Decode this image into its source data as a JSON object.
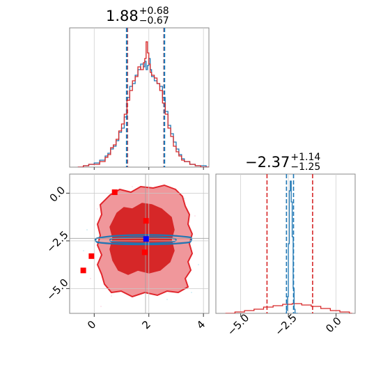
{
  "chart_data": [
    {
      "type": "histogram",
      "panel": "top-left",
      "title": {
        "value": "1.88",
        "upper": "+0.68",
        "lower": "−0.67"
      },
      "xlim": [
        -0.9,
        4.2
      ],
      "ylim": [
        0,
        1.0
      ],
      "grid": true,
      "lines": [
        {
          "color": "#d62728",
          "style": "dashed",
          "x": [
            1.21,
            2.56
          ]
        },
        {
          "color": "#1f77b4",
          "style": "dashed",
          "x": [
            1.19,
            2.57
          ]
        }
      ],
      "series": [
        {
          "color": "#1f77b4",
          "x": [
            -0.6,
            -0.4,
            -0.2,
            0.0,
            0.2,
            0.4,
            0.5,
            0.6,
            0.7,
            0.8,
            0.9,
            1.0,
            1.1,
            1.2,
            1.3,
            1.4,
            1.5,
            1.6,
            1.7,
            1.8,
            1.85,
            1.9,
            1.95,
            2.0,
            2.05,
            2.1,
            2.2,
            2.3,
            2.4,
            2.5,
            2.6,
            2.7,
            2.8,
            2.9,
            3.0,
            3.1,
            3.2,
            3.3,
            3.5,
            3.7,
            3.9,
            4.1
          ],
          "values": [
            0.0,
            0.01,
            0.02,
            0.03,
            0.05,
            0.08,
            0.1,
            0.13,
            0.15,
            0.19,
            0.25,
            0.28,
            0.36,
            0.5,
            0.58,
            0.6,
            0.66,
            0.7,
            0.74,
            0.72,
            0.76,
            0.7,
            0.73,
            0.78,
            0.7,
            0.65,
            0.62,
            0.6,
            0.58,
            0.5,
            0.4,
            0.3,
            0.24,
            0.18,
            0.13,
            0.09,
            0.06,
            0.04,
            0.02,
            0.01,
            0.01,
            0.0
          ]
        },
        {
          "color": "#d62728",
          "x": [
            -0.6,
            -0.4,
            -0.2,
            0.0,
            0.2,
            0.4,
            0.5,
            0.6,
            0.7,
            0.8,
            0.9,
            1.0,
            1.1,
            1.2,
            1.3,
            1.4,
            1.5,
            1.6,
            1.7,
            1.8,
            1.85,
            1.9,
            1.95,
            2.0,
            2.05,
            2.1,
            2.2,
            2.3,
            2.4,
            2.5,
            2.6,
            2.7,
            2.8,
            2.9,
            3.0,
            3.1,
            3.2,
            3.3,
            3.5,
            3.7,
            3.9,
            4.1
          ],
          "values": [
            0.0,
            0.01,
            0.02,
            0.02,
            0.04,
            0.07,
            0.09,
            0.14,
            0.16,
            0.2,
            0.26,
            0.31,
            0.38,
            0.48,
            0.55,
            0.62,
            0.65,
            0.72,
            0.7,
            0.75,
            0.78,
            0.9,
            0.82,
            0.74,
            0.68,
            0.66,
            0.64,
            0.6,
            0.55,
            0.46,
            0.38,
            0.28,
            0.22,
            0.15,
            0.11,
            0.08,
            0.05,
            0.04,
            0.02,
            0.01,
            0.0,
            0.0
          ]
        }
      ]
    },
    {
      "type": "contour",
      "panel": "bottom-left",
      "xlim": [
        -0.9,
        4.2
      ],
      "ylim": [
        -6.3,
        1.0
      ],
      "xticks": [
        "0",
        "2",
        "4"
      ],
      "yticks": [
        "0.0",
        "−2.5",
        "−5.0"
      ],
      "grid": true,
      "contour_levels": [
        {
          "name": "outer",
          "fill": "#f0979b",
          "stroke": "#e1262c"
        },
        {
          "name": "inner",
          "fill": "#d62728",
          "stroke": "#d62728"
        },
        {
          "name": "narrow",
          "fill": "none",
          "stroke": "#1f77b4"
        }
      ],
      "markers": [
        {
          "x": 0.75,
          "y": 0.05,
          "color": "#ff0000"
        },
        {
          "x": 1.9,
          "y": -1.45,
          "color": "#ff0000"
        },
        {
          "x": 1.85,
          "y": -3.1,
          "color": "#ff0000"
        },
        {
          "x": -0.1,
          "y": -3.3,
          "color": "#ff0000"
        },
        {
          "x": -0.4,
          "y": -4.05,
          "color": "#ff0000"
        },
        {
          "x": 1.9,
          "y": -2.4,
          "color": "#0000ff"
        }
      ],
      "crosshair": {
        "x": 1.88,
        "y": -2.37
      }
    },
    {
      "type": "histogram",
      "panel": "bottom-right",
      "title": {
        "value": "−2.37",
        "upper": "+1.14",
        "lower": "−1.25"
      },
      "xlim": [
        -6.3,
        1.0
      ],
      "ylim": [
        0,
        1.0
      ],
      "xticks": [
        "−5.0",
        "−2.5",
        "0.0"
      ],
      "grid": true,
      "lines": [
        {
          "color": "#d62728",
          "style": "dashed",
          "x": [
            -3.62,
            -1.23
          ]
        },
        {
          "color": "#1f77b4",
          "style": "dashed",
          "x": [
            -2.6,
            -2.23
          ]
        }
      ],
      "series": [
        {
          "color": "#d62728",
          "x": [
            -5.8,
            -5.3,
            -4.8,
            -4.3,
            -3.8,
            -3.3,
            -2.8,
            -2.3,
            -1.8,
            -1.3,
            -0.8,
            -0.3,
            0.2,
            0.7
          ],
          "values": [
            0.0,
            0.01,
            0.02,
            0.03,
            0.045,
            0.055,
            0.065,
            0.07,
            0.06,
            0.05,
            0.035,
            0.02,
            0.01,
            0.0
          ]
        },
        {
          "color": "#1f77b4",
          "x": [
            -2.65,
            -2.6,
            -2.55,
            -2.5,
            -2.45,
            -2.4,
            -2.35,
            -2.3,
            -2.25,
            -2.2,
            -2.15
          ],
          "values": [
            0.0,
            0.02,
            0.12,
            0.5,
            0.88,
            0.95,
            0.8,
            0.55,
            0.18,
            0.03,
            0.0
          ]
        }
      ]
    }
  ]
}
